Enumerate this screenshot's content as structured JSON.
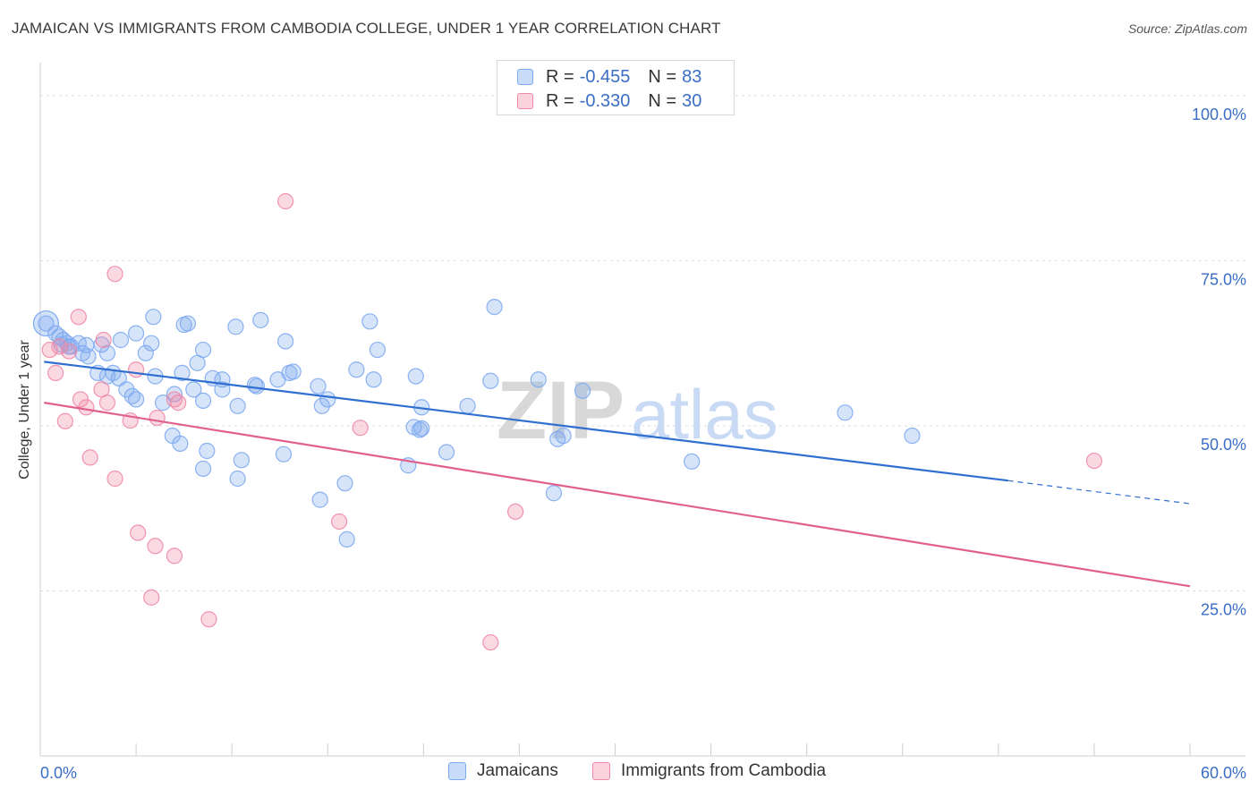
{
  "header": {
    "title": "JAMAICAN VS IMMIGRANTS FROM CAMBODIA COLLEGE, UNDER 1 YEAR CORRELATION CHART",
    "source": "Source: ZipAtlas.com"
  },
  "watermark": {
    "zip": "ZIP",
    "atlas": "atlas"
  },
  "legend": {
    "rows": [
      {
        "r_label": "R = ",
        "r_value": "-0.455",
        "n_label": "N = ",
        "n_value": "83",
        "color": "#7eaaf0"
      },
      {
        "r_label": "R = ",
        "r_value": "-0.330",
        "n_label": "N = ",
        "n_value": "30",
        "color": "#f08aa8"
      }
    ]
  },
  "chart_data": {
    "type": "scatter",
    "title": "JAMAICAN VS IMMIGRANTS FROM CAMBODIA COLLEGE, UNDER 1 YEAR CORRELATION CHART",
    "xlabel": "",
    "ylabel": "College, Under 1 year",
    "xlim": [
      0,
      60
    ],
    "ylim": [
      0,
      105
    ],
    "x_tick_labels": [
      "0.0%",
      "60.0%"
    ],
    "y_tick_values": [
      25,
      50,
      75,
      100
    ],
    "y_tick_labels": [
      "25.0%",
      "50.0%",
      "75.0%",
      "100.0%"
    ],
    "series": [
      {
        "name": "Jamaicans",
        "color": "#7eaaf0",
        "line_color": "#2f6fd0",
        "trend": {
          "x0": 0.2,
          "y0": 59.7,
          "x1": 50.5,
          "y1": 41.7,
          "dash_to_x": 60,
          "dash_to_y": 38.2
        },
        "points": [
          [
            0.3,
            65.5
          ],
          [
            0.8,
            64.0
          ],
          [
            1.0,
            63.5
          ],
          [
            1.2,
            63.0
          ],
          [
            1.4,
            62.5
          ],
          [
            1.6,
            62.0
          ],
          [
            2.0,
            62.5
          ],
          [
            2.2,
            61.0
          ],
          [
            2.5,
            60.5
          ],
          [
            3.5,
            61.0
          ],
          [
            4.2,
            63.0
          ],
          [
            5.0,
            64.0
          ],
          [
            5.5,
            61.0
          ],
          [
            5.8,
            62.5
          ],
          [
            5.9,
            66.5
          ],
          [
            7.5,
            65.3
          ],
          [
            7.7,
            65.5
          ],
          [
            10.2,
            65.0
          ],
          [
            11.5,
            66.0
          ],
          [
            12.8,
            62.8
          ],
          [
            17.2,
            65.8
          ],
          [
            17.6,
            61.5
          ],
          [
            23.7,
            68.0
          ],
          [
            3.0,
            58.0
          ],
          [
            3.5,
            57.5
          ],
          [
            3.8,
            58.0
          ],
          [
            4.5,
            55.5
          ],
          [
            4.8,
            54.5
          ],
          [
            6.0,
            57.5
          ],
          [
            6.4,
            53.5
          ],
          [
            7.0,
            54.8
          ],
          [
            7.4,
            58.0
          ],
          [
            8.2,
            59.5
          ],
          [
            8.5,
            61.5
          ],
          [
            8.0,
            55.5
          ],
          [
            8.5,
            53.8
          ],
          [
            9.5,
            57.0
          ],
          [
            9.5,
            55.5
          ],
          [
            10.3,
            53.0
          ],
          [
            11.3,
            56.0
          ],
          [
            12.4,
            57.0
          ],
          [
            13.0,
            58.0
          ],
          [
            14.5,
            56.0
          ],
          [
            14.7,
            53.0
          ],
          [
            15.0,
            54.0
          ],
          [
            16.5,
            58.5
          ],
          [
            17.4,
            57.0
          ],
          [
            19.6,
            57.5
          ],
          [
            19.9,
            52.8
          ],
          [
            23.5,
            56.8
          ],
          [
            26.0,
            57.0
          ],
          [
            28.3,
            55.3
          ],
          [
            22.3,
            53.0
          ],
          [
            19.5,
            49.8
          ],
          [
            19.8,
            49.4
          ],
          [
            19.9,
            49.6
          ],
          [
            21.2,
            46.0
          ],
          [
            27.0,
            48.0
          ],
          [
            27.3,
            48.5
          ],
          [
            34.0,
            44.6
          ],
          [
            42.0,
            52.0
          ],
          [
            45.5,
            48.5
          ],
          [
            6.9,
            48.5
          ],
          [
            7.3,
            47.3
          ],
          [
            8.7,
            46.2
          ],
          [
            8.5,
            43.5
          ],
          [
            10.5,
            44.8
          ],
          [
            10.3,
            42.0
          ],
          [
            12.7,
            45.7
          ],
          [
            14.6,
            38.8
          ],
          [
            15.9,
            41.3
          ],
          [
            16.0,
            32.8
          ],
          [
            19.2,
            44.0
          ],
          [
            26.8,
            39.8
          ],
          [
            1.1,
            62.3
          ],
          [
            1.5,
            62.0
          ],
          [
            2.4,
            62.2
          ],
          [
            3.2,
            62.3
          ],
          [
            4.1,
            57.2
          ],
          [
            5.0,
            54.0
          ],
          [
            9.0,
            57.2
          ],
          [
            11.2,
            56.2
          ],
          [
            13.2,
            58.2
          ]
        ]
      },
      {
        "name": "Immigrants from Cambodia",
        "color": "#f08aa8",
        "line_color": "#e0618e",
        "trend": {
          "x0": 0.2,
          "y0": 53.5,
          "x1": 60,
          "y1": 25.7
        },
        "points": [
          [
            0.5,
            61.5
          ],
          [
            1.0,
            62.0
          ],
          [
            1.5,
            61.3
          ],
          [
            2.0,
            66.5
          ],
          [
            3.3,
            63.0
          ],
          [
            0.8,
            58.0
          ],
          [
            1.3,
            50.7
          ],
          [
            2.1,
            54.0
          ],
          [
            2.4,
            52.8
          ],
          [
            3.2,
            55.5
          ],
          [
            3.5,
            53.5
          ],
          [
            4.7,
            50.8
          ],
          [
            5.0,
            58.5
          ],
          [
            6.1,
            51.2
          ],
          [
            7.2,
            53.5
          ],
          [
            2.6,
            45.2
          ],
          [
            3.9,
            42.0
          ],
          [
            5.1,
            33.8
          ],
          [
            6.0,
            31.8
          ],
          [
            7.0,
            30.3
          ],
          [
            5.8,
            24.0
          ],
          [
            8.8,
            20.7
          ],
          [
            3.9,
            73.0
          ],
          [
            12.8,
            84.0
          ],
          [
            16.7,
            49.7
          ],
          [
            15.6,
            35.5
          ],
          [
            24.8,
            37.0
          ],
          [
            23.5,
            17.2
          ],
          [
            55.0,
            44.7
          ],
          [
            7.0,
            54.0
          ]
        ]
      }
    ]
  },
  "bottom_legend": {
    "items": [
      {
        "label": "Jamaicans",
        "color": "#7eaaf0"
      },
      {
        "label": "Immigrants from Cambodia",
        "color": "#f08aa8"
      }
    ]
  }
}
